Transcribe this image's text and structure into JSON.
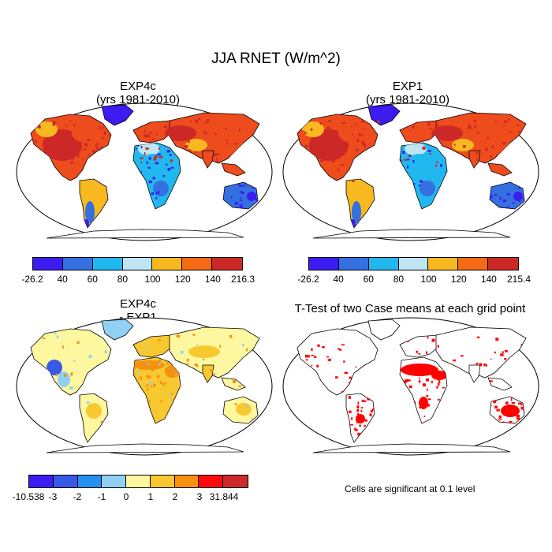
{
  "figure": {
    "title": "JJA RNET (W/m^2)"
  },
  "panels": [
    {
      "id": "top-left",
      "title_line1": "EXP4c",
      "title_line2": "(yrs 1981-2010)",
      "type": "field"
    },
    {
      "id": "top-right",
      "title_line1": "EXP1",
      "title_line2": "(yrs 1981-2010)",
      "type": "field"
    },
    {
      "id": "bottom-left",
      "title_line1": "EXP4c",
      "title_line2": "- EXP1",
      "type": "difference"
    },
    {
      "id": "bottom-right",
      "title_line1": "T-Test of two Case means at each grid point",
      "type": "significance",
      "note": "Cells are significant at 0.1 level",
      "sig_color": "#ff0000"
    }
  ],
  "colorbars": [
    {
      "id": "cb1",
      "labels": [
        "-26.2",
        "40",
        "60",
        "80",
        "100",
        "120",
        "140",
        "216.3"
      ],
      "colors": [
        "#3c1cf0",
        "#3470e0",
        "#21b8ef",
        "#bde5f4",
        "#f8b820",
        "#f36a12",
        "#cc2828"
      ]
    },
    {
      "id": "cb2",
      "labels": [
        "-26.2",
        "40",
        "60",
        "80",
        "100",
        "120",
        "140",
        "215.4"
      ],
      "colors": [
        "#3c1cf0",
        "#3470e0",
        "#21b8ef",
        "#bde5f4",
        "#f8b820",
        "#f36a12",
        "#cc2828"
      ]
    },
    {
      "id": "cb3",
      "labels": [
        "-10.538",
        "-3",
        "-2",
        "-1",
        "0",
        "1",
        "2",
        "3",
        "31.844"
      ],
      "colors": [
        "#3c1cf0",
        "#3a58e6",
        "#2490ef",
        "#8fd0f4",
        "#fdf7a0",
        "#f8c830",
        "#f59010",
        "#ff0a0a",
        "#cc2a2a"
      ]
    }
  ],
  "map_colors": {
    "ocean": "#ffffff",
    "coast": "#000000",
    "f_high": "#ee4c1c",
    "f_vhigh": "#cc2828",
    "f_mid": "#f8b820",
    "f_lowmid": "#bde5f4",
    "f_low": "#21b8ef",
    "f_vlow": "#3470e0",
    "f_min": "#3c1cf0",
    "d_zero": "#fdf7a0",
    "d_pos1": "#f8c830",
    "d_pos2": "#f59010",
    "d_neg1": "#8fd0f4",
    "d_neg2": "#3a58e6"
  }
}
